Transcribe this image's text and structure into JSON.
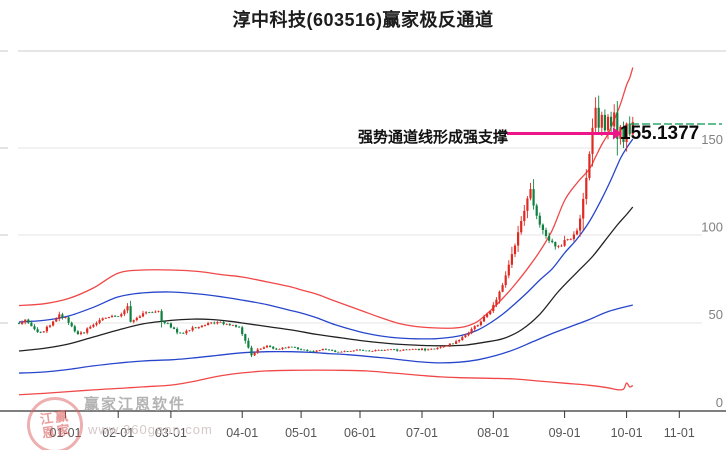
{
  "header": {
    "title": "淳中科技(603516)赢家极反通道"
  },
  "annotation": {
    "text": "强势通道线形成强支撑",
    "price_label": "155.1377",
    "arrow_color": "#ee1588"
  },
  "watermark": {
    "brand": "赢家江恩软件",
    "url": "www.360gann.com",
    "seal_chars": [
      "江",
      "赢",
      "恩",
      "家"
    ]
  },
  "chart_data": {
    "type": "candlestick",
    "title": "淳中科技(603516)赢家极反通道",
    "symbol": "603516",
    "stock_name": "淳中科技",
    "grid": true,
    "legend_position": "none",
    "ylim": [
      0,
      205
    ],
    "y_ticks": [
      {
        "label": "150",
        "value": 150
      },
      {
        "label": "100",
        "value": 100
      },
      {
        "label": "50",
        "value": 50
      },
      {
        "label": "0",
        "value": 0
      }
    ],
    "x_ticks": [
      {
        "label": "01-01",
        "day": 15
      },
      {
        "label": "02-01",
        "day": 32
      },
      {
        "label": "03-01",
        "day": 49
      },
      {
        "label": "04-01",
        "day": 72
      },
      {
        "label": "05-01",
        "day": 91
      },
      {
        "label": "06-01",
        "day": 110
      },
      {
        "label": "07-01",
        "day": 130
      },
      {
        "label": "08-01",
        "day": 153
      },
      {
        "label": "09-01",
        "day": 176
      },
      {
        "label": "10-01",
        "day": 196
      },
      {
        "label": "11-01",
        "day": 213
      }
    ],
    "total_days": 199,
    "colors": {
      "up": "#de2a21",
      "down": "#0f8040",
      "channel_red": "#f04848",
      "channel_blue": "#2746cc",
      "channel_black": "#222222",
      "grid": "#e4e4e4",
      "axis": "#333333",
      "x_label": "#555555",
      "y_label": "#808080",
      "dashed_close": "#00994d"
    },
    "close_keyframes": [
      [
        0,
        50
      ],
      [
        2,
        51.5
      ],
      [
        4,
        48
      ],
      [
        6,
        44.5
      ],
      [
        8,
        45.5
      ],
      [
        10,
        49
      ],
      [
        13,
        54.5
      ],
      [
        15,
        53
      ],
      [
        16,
        50
      ],
      [
        19,
        43.5
      ],
      [
        21,
        45
      ],
      [
        23,
        48
      ],
      [
        27,
        52.5
      ],
      [
        30,
        54
      ],
      [
        32,
        53.5
      ],
      [
        34,
        57
      ],
      [
        35,
        59.5
      ],
      [
        36,
        51
      ],
      [
        38,
        53
      ],
      [
        40,
        55
      ],
      [
        43,
        56.5
      ],
      [
        45,
        57.5
      ],
      [
        46,
        51
      ],
      [
        48,
        49.5
      ],
      [
        51,
        44.5
      ],
      [
        53,
        43.8
      ],
      [
        56,
        47
      ],
      [
        60,
        49
      ],
      [
        64,
        50.5
      ],
      [
        68,
        49
      ],
      [
        71,
        47.5
      ],
      [
        73,
        40
      ],
      [
        74,
        35.5
      ],
      [
        75,
        31.5
      ],
      [
        77,
        34.5
      ],
      [
        80,
        36.5
      ],
      [
        83,
        35
      ],
      [
        86,
        35.8
      ],
      [
        88,
        36.5
      ],
      [
        91,
        34.5
      ],
      [
        95,
        33.5
      ],
      [
        98,
        35
      ],
      [
        101,
        34.2
      ],
      [
        104,
        33.6
      ],
      [
        107,
        33.9
      ],
      [
        110,
        34.6
      ],
      [
        113,
        33.8
      ],
      [
        116,
        34.3
      ],
      [
        119,
        35
      ],
      [
        122,
        34.4
      ],
      [
        125,
        34.8
      ],
      [
        128,
        35.2
      ],
      [
        131,
        34.9
      ],
      [
        134,
        35.1
      ],
      [
        137,
        36.5
      ],
      [
        140,
        38.5
      ],
      [
        142,
        40.5
      ],
      [
        144,
        43
      ],
      [
        146,
        46.5
      ],
      [
        148,
        49
      ],
      [
        150,
        53
      ],
      [
        152,
        57
      ],
      [
        154,
        63
      ],
      [
        156,
        72
      ],
      [
        158,
        83
      ],
      [
        160,
        95
      ],
      [
        162,
        108
      ],
      [
        163,
        114
      ],
      [
        164,
        121
      ],
      [
        165,
        127
      ],
      [
        166,
        116
      ],
      [
        168,
        107
      ],
      [
        170,
        100
      ],
      [
        172,
        96
      ],
      [
        174,
        93
      ],
      [
        176,
        97
      ],
      [
        178,
        98
      ],
      [
        180,
        102
      ],
      [
        181,
        110
      ],
      [
        182,
        121
      ],
      [
        183,
        133
      ],
      [
        184,
        146
      ],
      [
        185,
        160
      ],
      [
        186,
        172
      ],
      [
        187,
        163
      ],
      [
        188,
        168
      ],
      [
        189,
        161
      ],
      [
        190,
        168
      ],
      [
        191,
        164
      ],
      [
        192,
        170
      ],
      [
        193,
        157
      ],
      [
        194,
        162
      ],
      [
        195,
        155
      ],
      [
        196,
        165
      ],
      [
        197,
        158
      ],
      [
        198,
        163.7
      ]
    ],
    "wick_overrides": [
      {
        "day": 186,
        "high": 179
      },
      {
        "day": 165,
        "high": 128.5
      },
      {
        "day": 75,
        "low": 30.5
      }
    ],
    "channel_lines": [
      {
        "name": "upper-red-channel-line",
        "color": "#f04848",
        "points": [
          [
            0,
            60
          ],
          [
            8,
            61
          ],
          [
            16,
            64
          ],
          [
            24,
            70
          ],
          [
            32,
            78.5
          ],
          [
            40,
            80.3
          ],
          [
            49,
            80.3
          ],
          [
            58,
            79.4
          ],
          [
            66,
            77.5
          ],
          [
            72,
            76.3
          ],
          [
            80,
            73.5
          ],
          [
            88,
            70.5
          ],
          [
            91,
            68.9
          ],
          [
            96,
            66.5
          ],
          [
            102,
            62.5
          ],
          [
            110,
            57.4
          ],
          [
            116,
            53.5
          ],
          [
            122,
            50
          ],
          [
            128,
            48
          ],
          [
            134,
            47.2
          ],
          [
            140,
            47.1
          ],
          [
            144,
            48
          ],
          [
            148,
            51
          ],
          [
            152,
            57
          ],
          [
            156,
            64
          ],
          [
            160,
            72
          ],
          [
            164,
            81
          ],
          [
            168,
            91
          ],
          [
            172,
            103
          ],
          [
            176,
            120
          ],
          [
            180,
            130
          ],
          [
            184,
            138
          ],
          [
            186,
            145
          ],
          [
            188,
            152
          ],
          [
            190,
            158
          ],
          [
            192,
            166
          ],
          [
            194,
            175
          ],
          [
            196,
            186
          ],
          [
            197,
            190
          ],
          [
            198,
            196
          ]
        ]
      },
      {
        "name": "upper-blue-channel-line",
        "color": "#2746cc",
        "points": [
          [
            0,
            50.6
          ],
          [
            8,
            51.5
          ],
          [
            16,
            54
          ],
          [
            24,
            59
          ],
          [
            32,
            64.9
          ],
          [
            40,
            67.2
          ],
          [
            49,
            67.7
          ],
          [
            58,
            66.6
          ],
          [
            66,
            64.8
          ],
          [
            72,
            63.1
          ],
          [
            80,
            60.5
          ],
          [
            88,
            57
          ],
          [
            91,
            55.7
          ],
          [
            96,
            53
          ],
          [
            102,
            49
          ],
          [
            110,
            44.9
          ],
          [
            116,
            42.8
          ],
          [
            122,
            41.5
          ],
          [
            128,
            41
          ],
          [
            134,
            41
          ],
          [
            140,
            42
          ],
          [
            144,
            43.5
          ],
          [
            148,
            46
          ],
          [
            152,
            50
          ],
          [
            156,
            55
          ],
          [
            160,
            61
          ],
          [
            164,
            67.5
          ],
          [
            168,
            74.6
          ],
          [
            172,
            81
          ],
          [
            176,
            90
          ],
          [
            180,
            98
          ],
          [
            184,
            108
          ],
          [
            188,
            121
          ],
          [
            191,
            132
          ],
          [
            194,
            144
          ],
          [
            196,
            150
          ],
          [
            198,
            155.14
          ]
        ]
      },
      {
        "name": "middle-black-channel-line",
        "color": "#222222",
        "points": [
          [
            0,
            34
          ],
          [
            8,
            35.5
          ],
          [
            16,
            38
          ],
          [
            24,
            42
          ],
          [
            32,
            46
          ],
          [
            40,
            49.5
          ],
          [
            49,
            51.5
          ],
          [
            56,
            52.2
          ],
          [
            62,
            52
          ],
          [
            68,
            51
          ],
          [
            72,
            50
          ],
          [
            80,
            48
          ],
          [
            88,
            46
          ],
          [
            96,
            43.5
          ],
          [
            104,
            41.5
          ],
          [
            110,
            40
          ],
          [
            118,
            38.5
          ],
          [
            126,
            37.5
          ],
          [
            132,
            37.1
          ],
          [
            138,
            37
          ],
          [
            144,
            37.4
          ],
          [
            150,
            39
          ],
          [
            156,
            41
          ],
          [
            162,
            46
          ],
          [
            168,
            55
          ],
          [
            174,
            68
          ],
          [
            180,
            79
          ],
          [
            185,
            88
          ],
          [
            189,
            97
          ],
          [
            193,
            106
          ],
          [
            196,
            112
          ],
          [
            198,
            116.3
          ]
        ]
      },
      {
        "name": "lower-blue-channel-line",
        "color": "#2746cc",
        "points": [
          [
            0,
            21.4
          ],
          [
            8,
            22
          ],
          [
            16,
            23.5
          ],
          [
            24,
            25.5
          ],
          [
            32,
            27.1
          ],
          [
            40,
            28.3
          ],
          [
            49,
            29
          ],
          [
            56,
            30
          ],
          [
            64,
            31.5
          ],
          [
            72,
            33
          ],
          [
            80,
            33.6
          ],
          [
            88,
            33.6
          ],
          [
            94,
            33.2
          ],
          [
            100,
            32.5
          ],
          [
            106,
            31.9
          ],
          [
            112,
            31
          ],
          [
            118,
            30
          ],
          [
            124,
            28.8
          ],
          [
            130,
            27.7
          ],
          [
            136,
            27.2
          ],
          [
            142,
            27.6
          ],
          [
            148,
            29
          ],
          [
            154,
            31.5
          ],
          [
            160,
            35
          ],
          [
            166,
            39.5
          ],
          [
            172,
            44
          ],
          [
            178,
            48
          ],
          [
            184,
            52
          ],
          [
            190,
            56.5
          ],
          [
            198,
            60.3
          ]
        ]
      },
      {
        "name": "lower-red-channel-line",
        "color": "#f04848",
        "points": [
          [
            0,
            9
          ],
          [
            8,
            9.8
          ],
          [
            16,
            10.8
          ],
          [
            24,
            11.8
          ],
          [
            32,
            12.6
          ],
          [
            40,
            13.5
          ],
          [
            49,
            14.5
          ],
          [
            56,
            16.5
          ],
          [
            64,
            19.5
          ],
          [
            72,
            21.5
          ],
          [
            80,
            22.6
          ],
          [
            88,
            23
          ],
          [
            96,
            23.1
          ],
          [
            104,
            23
          ],
          [
            112,
            22.6
          ],
          [
            120,
            21.5
          ],
          [
            128,
            20.3
          ],
          [
            136,
            19.2
          ],
          [
            144,
            18.7
          ],
          [
            152,
            18.4
          ],
          [
            160,
            18
          ],
          [
            168,
            16.8
          ],
          [
            176,
            15.6
          ],
          [
            184,
            14.4
          ],
          [
            190,
            13
          ],
          [
            193,
            11.9
          ],
          [
            195,
            12.2
          ],
          [
            196,
            15.7
          ],
          [
            197,
            13.5
          ],
          [
            198,
            14.3
          ]
        ]
      }
    ],
    "last_close_line": {
      "value": 163.7,
      "style": "dashed",
      "color": "#00994d"
    },
    "support_value": 155.1377,
    "annotation": {
      "text": "强势通道线形成强支撑",
      "points_to_value": 155.1377
    }
  }
}
